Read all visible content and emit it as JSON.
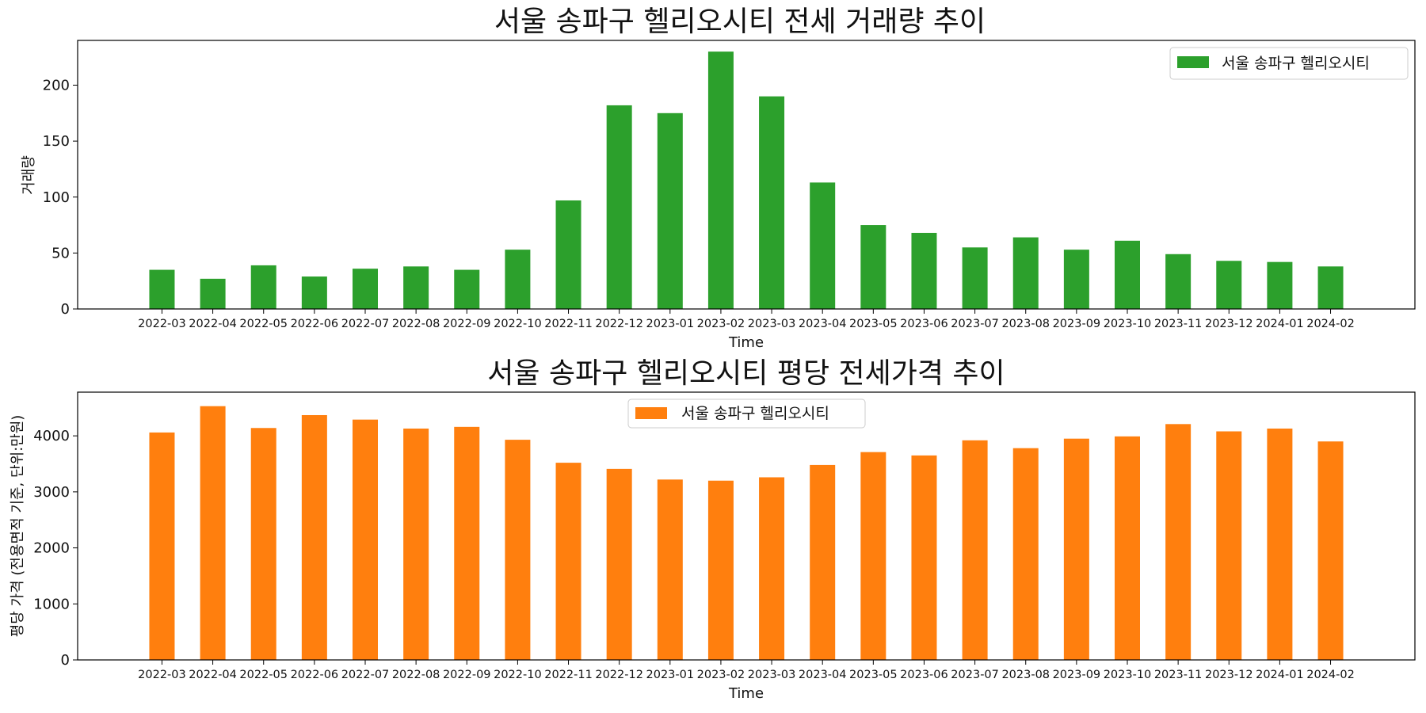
{
  "chart_data": [
    {
      "type": "bar",
      "title": "서울 송파구 헬리오시티 전세 거래량 추이",
      "xlabel": "Time",
      "ylabel": "거래량",
      "color": "#2ca02c",
      "legend_position": "top-right",
      "ylim": [
        0,
        240
      ],
      "yticks": [
        0,
        50,
        100,
        150,
        200
      ],
      "categories": [
        "2022-03",
        "2022-04",
        "2022-05",
        "2022-06",
        "2022-07",
        "2022-08",
        "2022-09",
        "2022-10",
        "2022-11",
        "2022-12",
        "2023-01",
        "2023-02",
        "2023-03",
        "2023-04",
        "2023-05",
        "2023-06",
        "2023-07",
        "2023-08",
        "2023-09",
        "2023-10",
        "2023-11",
        "2023-12",
        "2024-01",
        "2024-02"
      ],
      "series": [
        {
          "name": "서울 송파구 헬리오시티",
          "values": [
            35,
            27,
            39,
            29,
            36,
            38,
            35,
            53,
            97,
            182,
            175,
            230,
            190,
            113,
            75,
            68,
            55,
            64,
            53,
            61,
            49,
            43,
            42,
            38
          ]
        }
      ]
    },
    {
      "type": "bar",
      "title": "서울 송파구 헬리오시티 평당 전세가격 추이",
      "xlabel": "Time",
      "ylabel": "평당 가격 (전용면적 기준, 단위:만원)",
      "color": "#ff7f0e",
      "legend_position": "top-center",
      "ylim": [
        0,
        4780
      ],
      "yticks": [
        0,
        1000,
        2000,
        3000,
        4000
      ],
      "categories": [
        "2022-03",
        "2022-04",
        "2022-05",
        "2022-06",
        "2022-07",
        "2022-08",
        "2022-09",
        "2022-10",
        "2022-11",
        "2022-12",
        "2023-01",
        "2023-02",
        "2023-03",
        "2023-04",
        "2023-05",
        "2023-06",
        "2023-07",
        "2023-08",
        "2023-09",
        "2023-10",
        "2023-11",
        "2023-12",
        "2024-01",
        "2024-02"
      ],
      "series": [
        {
          "name": "서울 송파구 헬리오시티",
          "values": [
            4060,
            4530,
            4140,
            4370,
            4290,
            4130,
            4160,
            3930,
            3520,
            3410,
            3220,
            3200,
            3260,
            3480,
            3710,
            3650,
            3920,
            3780,
            3950,
            3990,
            4210,
            4080,
            4130,
            3900
          ]
        }
      ]
    }
  ]
}
